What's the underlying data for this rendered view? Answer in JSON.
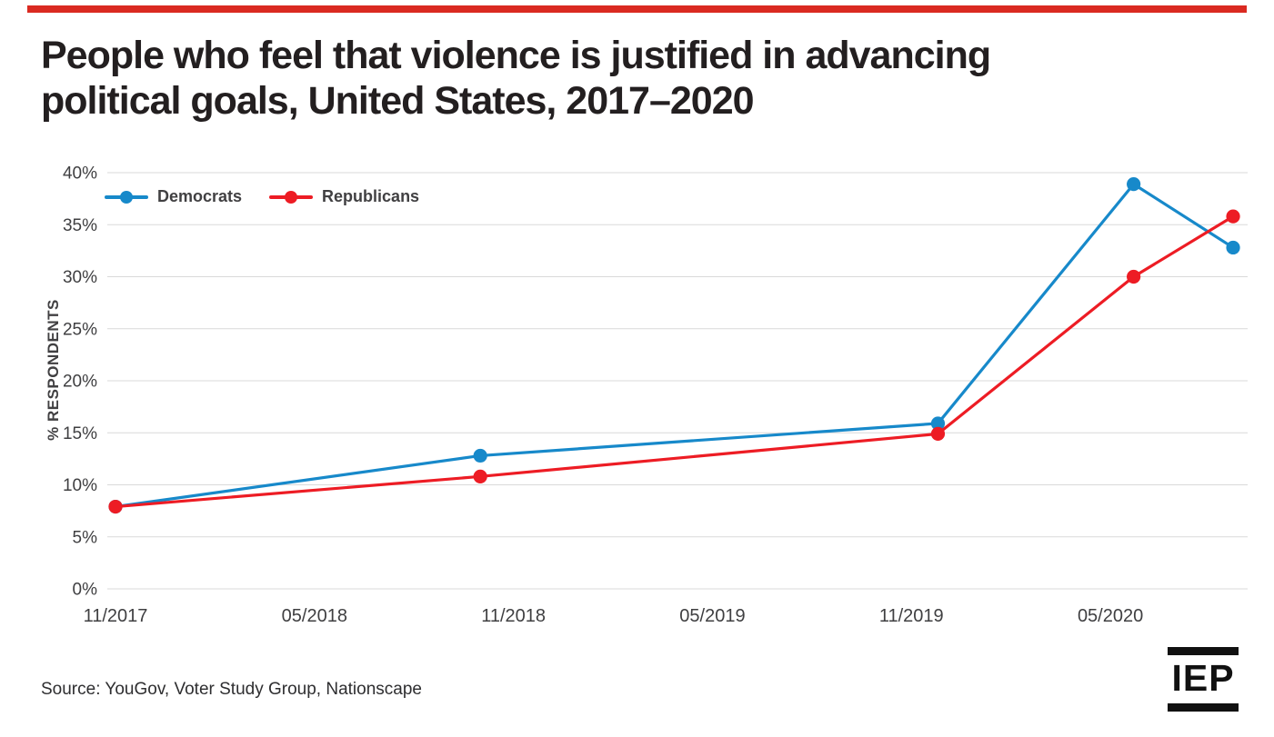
{
  "page": {
    "top_bar_color": "#da2a21"
  },
  "header": {
    "title_line1": "People who feel that violence is justified in advancing",
    "title_line2": "political goals, United States, 2017–2020"
  },
  "chart_data": {
    "type": "line",
    "title": "People who feel that violence is justified in advancing political goals, United States, 2017–2020",
    "xlabel": "",
    "ylabel": "% RESPONDENTS",
    "ylim": [
      0,
      40
    ],
    "grid": "horizontal",
    "legend_position": "top-left-inside",
    "grid_color": "#d9d9d9",
    "axis_text_color": "#3f3f41",
    "yticks": [
      {
        "value": 0,
        "label": "0%"
      },
      {
        "value": 5,
        "label": "5%"
      },
      {
        "value": 10,
        "label": "10%"
      },
      {
        "value": 15,
        "label": "15%"
      },
      {
        "value": 20,
        "label": "20%"
      },
      {
        "value": 25,
        "label": "25%"
      },
      {
        "value": 30,
        "label": "30%"
      },
      {
        "value": 35,
        "label": "35%"
      },
      {
        "value": 40,
        "label": "40%"
      }
    ],
    "xticks": [
      {
        "month": 0,
        "label": "11/2017"
      },
      {
        "month": 6,
        "label": "05/2018"
      },
      {
        "month": 12,
        "label": "11/2018"
      },
      {
        "month": 18,
        "label": "05/2019"
      },
      {
        "month": 24,
        "label": "11/2019"
      },
      {
        "month": 30,
        "label": "05/2020"
      }
    ],
    "x_months": [
      0,
      11,
      24.8,
      30.7,
      33.7
    ],
    "series": [
      {
        "name": "Democrats",
        "color": "#1789CA",
        "values": [
          7.9,
          12.8,
          15.9,
          38.9,
          32.8
        ]
      },
      {
        "name": "Republicans",
        "color": "#ED1C24",
        "values": [
          7.9,
          10.8,
          14.9,
          30.0,
          35.8
        ]
      }
    ]
  },
  "footer": {
    "source": "Source: YouGov, Voter Study Group, Nationscape",
    "logo_text": "IEP"
  }
}
